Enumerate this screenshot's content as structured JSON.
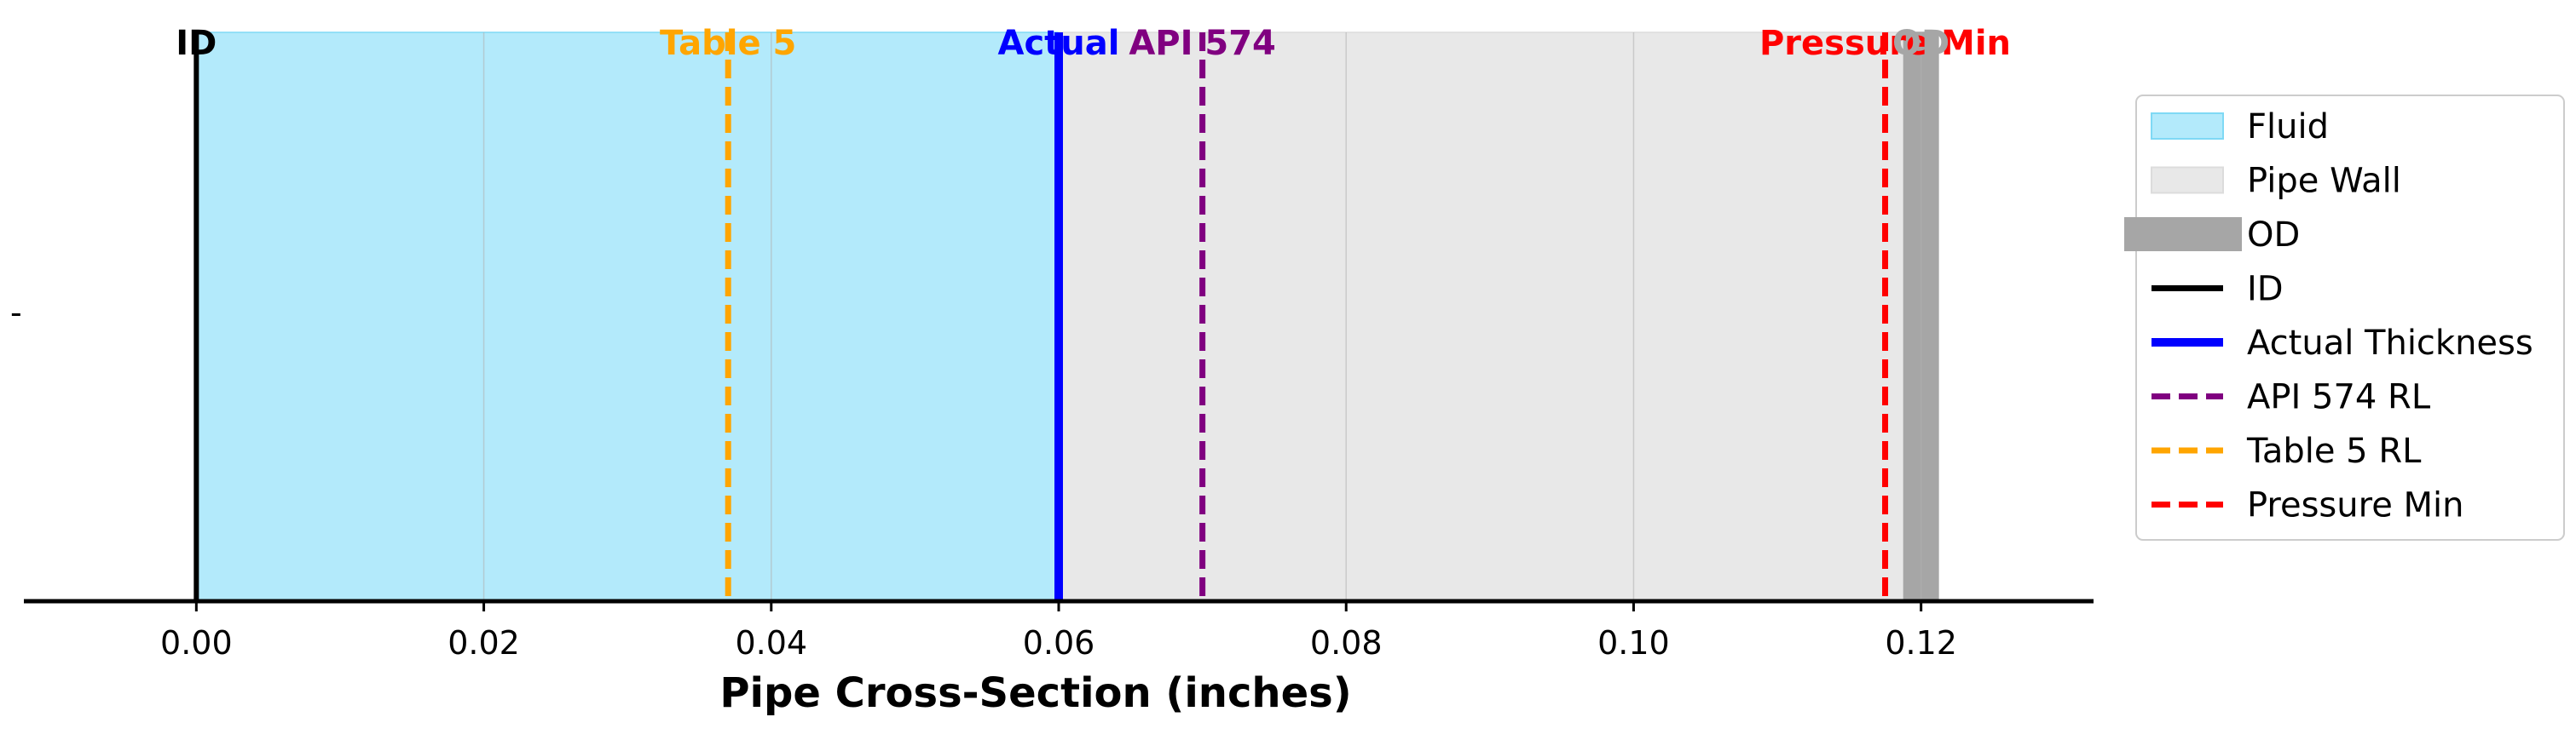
{
  "chart_data": {
    "type": "line",
    "xlabel": "Pipe Cross-Section (inches)",
    "xlim": [
      -0.012,
      0.132
    ],
    "xticks": [
      "0.00",
      "0.02",
      "0.04",
      "0.06",
      "0.08",
      "0.10",
      "0.12"
    ],
    "xtick_values": [
      0.0,
      0.02,
      0.04,
      0.06,
      0.08,
      0.1,
      0.12
    ],
    "ytick_label": "-",
    "grid": true,
    "legend_position": "right",
    "regions": [
      {
        "name": "Fluid",
        "from": 0.0,
        "to": 0.06,
        "color": "#b3eafb",
        "edge": "#7fd9f5"
      },
      {
        "name": "Pipe Wall",
        "from": 0.06,
        "to": 0.121,
        "color": "#e8e8e8",
        "edge": "#dcdcdc"
      },
      {
        "name": "OD",
        "from": 0.1188,
        "to": 0.1212,
        "color": "#a6a6a6",
        "edge": "#a6a6a6"
      }
    ],
    "lines": [
      {
        "name": "ID",
        "legend": "ID",
        "x": 0.0,
        "color": "#000000",
        "style": "solid",
        "label": "ID"
      },
      {
        "name": "Actual Thickness",
        "legend": "Actual Thickness",
        "x": 0.06,
        "color": "#0000ff",
        "style": "solid",
        "label": "Actual"
      },
      {
        "name": "API 574 RL",
        "legend": "API 574 RL",
        "x": 0.07,
        "color": "#800080",
        "style": "dashed",
        "label": "API 574"
      },
      {
        "name": "Table 5 RL",
        "legend": "Table 5 RL",
        "x": 0.037,
        "color": "#ffa500",
        "style": "dashed",
        "label": "Table 5"
      },
      {
        "name": "Pressure Min",
        "legend": "Pressure Min",
        "x": 0.1175,
        "color": "#ff0000",
        "style": "dashed",
        "label": "Pressure Min"
      }
    ],
    "od_label": "OD",
    "od_label_color": "#a6a6a6",
    "legend": [
      "Fluid",
      "Pipe Wall",
      "OD",
      "ID",
      "Actual Thickness",
      "API 574 RL",
      "Table 5 RL",
      "Pressure Min"
    ]
  }
}
